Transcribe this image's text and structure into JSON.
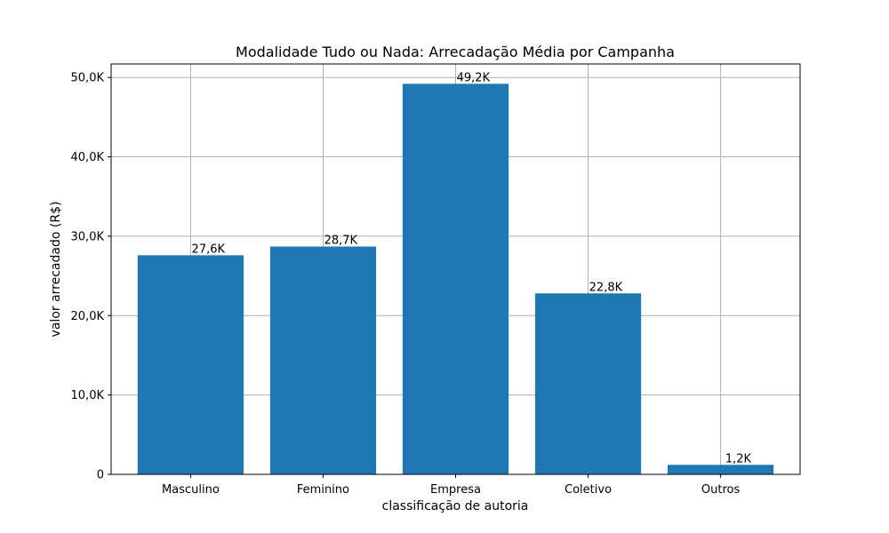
{
  "chart_data": {
    "type": "bar",
    "title": "Modalidade Tudo ou Nada: Arrecadação Média por Campanha",
    "xlabel": "classificação de autoria",
    "ylabel": "valor arrecadado (R$)",
    "categories": [
      "Masculino",
      "Feminino",
      "Empresa",
      "Coletivo",
      "Outros"
    ],
    "values": [
      27600,
      28700,
      49200,
      22800,
      1200
    ],
    "data_labels": [
      "27,6K",
      "28,7K",
      "49,2K",
      "22,8K",
      "1,2K"
    ],
    "ylim": [
      0,
      51700
    ],
    "yticks": [
      0,
      10000,
      20000,
      30000,
      40000,
      50000
    ],
    "ytick_labels": [
      "0",
      "10,0K",
      "20,0K",
      "30,0K",
      "40,0K",
      "50,0K"
    ],
    "grid": true,
    "bar_color": "#1f77b4"
  }
}
